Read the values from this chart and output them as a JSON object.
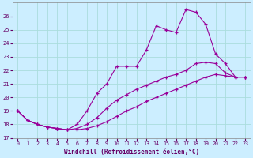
{
  "xlabel": "Windchill (Refroidissement éolien,°C)",
  "bg_color": "#cceeff",
  "line_color": "#990099",
  "xlim": [
    -0.5,
    23.5
  ],
  "ylim": [
    17,
    27
  ],
  "yticks": [
    17,
    18,
    19,
    20,
    21,
    22,
    23,
    24,
    25,
    26
  ],
  "xticks": [
    0,
    1,
    2,
    3,
    4,
    5,
    6,
    7,
    8,
    9,
    10,
    11,
    12,
    13,
    14,
    15,
    16,
    17,
    18,
    19,
    20,
    21,
    22,
    23
  ],
  "series1_x": [
    0,
    1,
    2,
    3,
    4,
    5,
    6,
    7,
    8,
    9,
    10,
    11,
    12,
    13,
    14,
    15,
    16,
    17,
    18,
    19,
    20,
    21,
    22,
    23
  ],
  "series1_y": [
    19.0,
    18.3,
    18.0,
    17.8,
    17.7,
    17.6,
    18.0,
    19.0,
    20.3,
    21.0,
    22.3,
    22.3,
    22.3,
    23.5,
    25.3,
    25.0,
    24.8,
    26.5,
    26.3,
    25.4,
    23.2,
    22.5,
    21.5,
    21.5
  ],
  "series2_x": [
    0,
    1,
    2,
    3,
    4,
    5,
    6,
    7,
    8,
    9,
    10,
    11,
    12,
    13,
    14,
    15,
    16,
    17,
    18,
    19,
    20,
    21,
    22,
    23
  ],
  "series2_y": [
    19.0,
    18.3,
    18.0,
    17.8,
    17.7,
    17.6,
    17.7,
    18.0,
    18.5,
    19.2,
    19.8,
    20.2,
    20.6,
    20.9,
    21.2,
    21.5,
    21.7,
    22.0,
    22.5,
    22.6,
    22.5,
    21.8,
    21.5,
    21.5
  ],
  "series3_x": [
    0,
    1,
    2,
    3,
    4,
    5,
    6,
    7,
    8,
    9,
    10,
    11,
    12,
    13,
    14,
    15,
    16,
    17,
    18,
    19,
    20,
    21,
    22,
    23
  ],
  "series3_y": [
    19.0,
    18.3,
    18.0,
    17.8,
    17.7,
    17.6,
    17.6,
    17.7,
    17.9,
    18.2,
    18.6,
    19.0,
    19.3,
    19.7,
    20.0,
    20.3,
    20.6,
    20.9,
    21.2,
    21.5,
    21.7,
    21.6,
    21.5,
    21.5
  ]
}
